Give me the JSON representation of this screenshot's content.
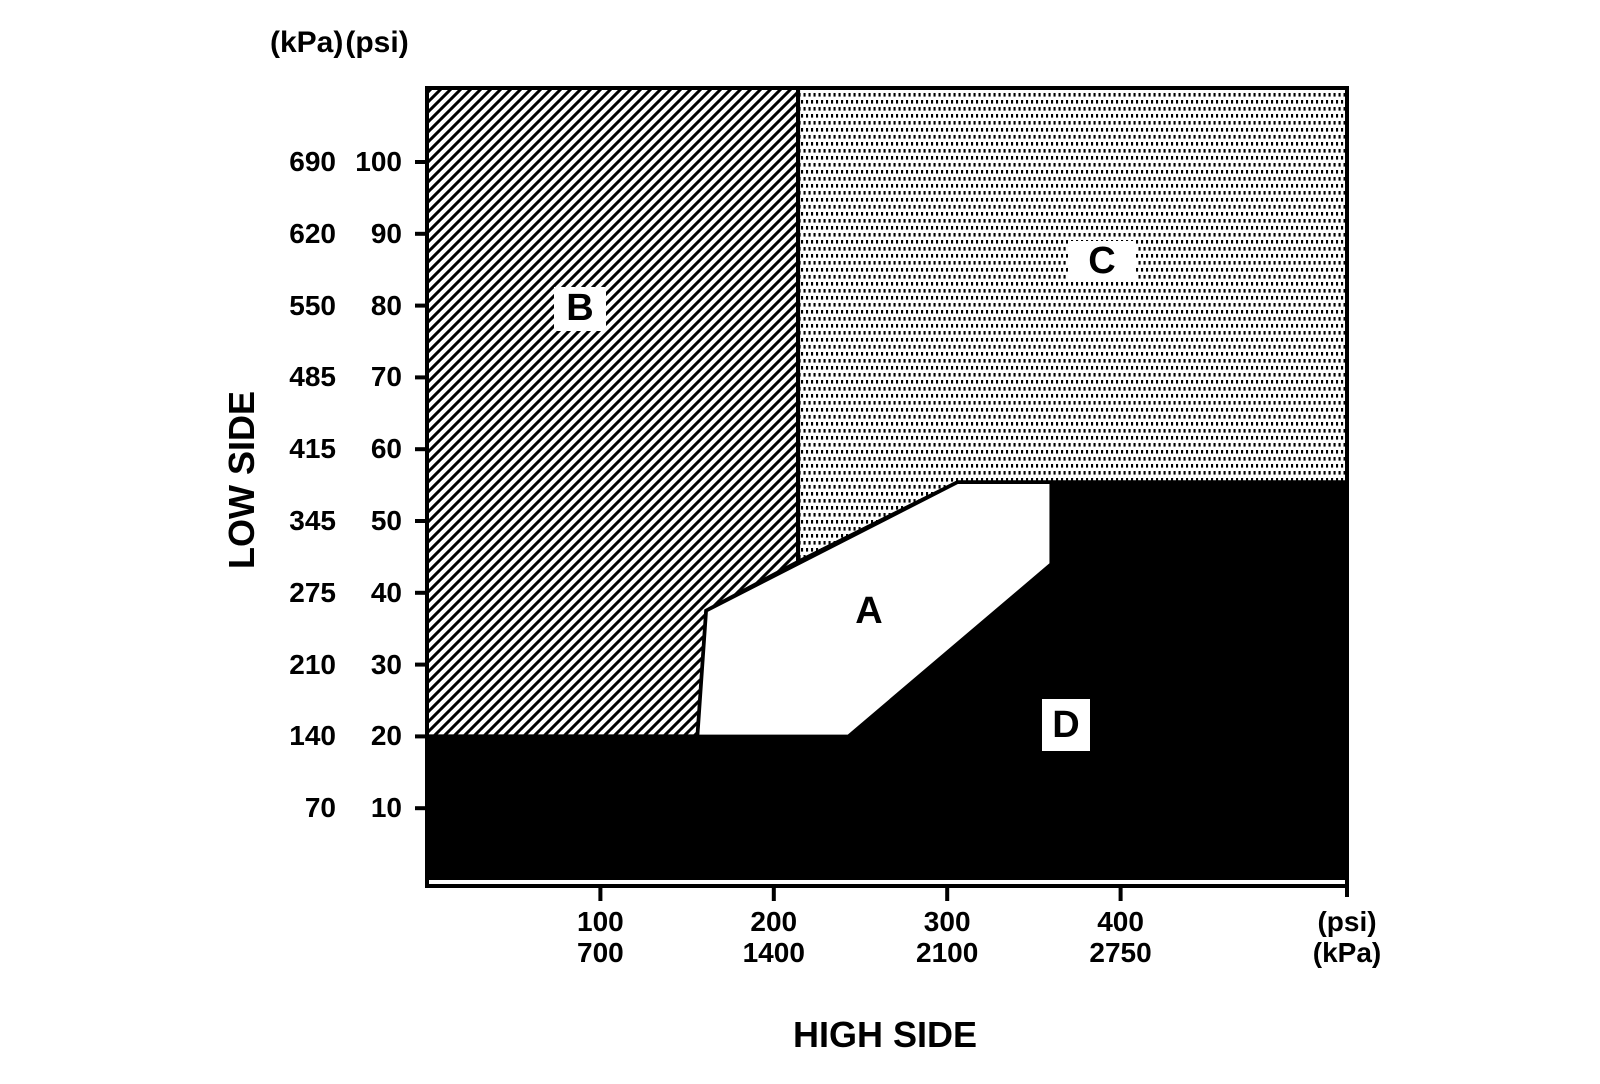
{
  "header": {
    "kpa": "(kPa)",
    "psi": "(psi)"
  },
  "y_axis_title": "LOW SIDE",
  "x_axis_title": "HIGH SIDE",
  "x_axis_unit_psi": "(psi)",
  "x_axis_unit_kpa": "(kPa)",
  "colors": {
    "ink": "#000000",
    "bg": "#ffffff"
  },
  "chart_data": {
    "type": "area",
    "subtype": "region-diagnostic-map",
    "title": "",
    "xlabel": "HIGH SIDE",
    "ylabel": "LOW SIDE",
    "x_units_rows": [
      "psi",
      "kPa"
    ],
    "y_units_cols": [
      "kPa",
      "psi"
    ],
    "xlim_psi": [
      0,
      530.6
    ],
    "ylim_psi": [
      0,
      110.3
    ],
    "grid": false,
    "legend": false,
    "x_ticks": [
      {
        "psi": 100,
        "kpa": 700
      },
      {
        "psi": 200,
        "kpa": 1400
      },
      {
        "psi": 300,
        "kpa": 2100
      },
      {
        "psi": 400,
        "kpa": 2750
      }
    ],
    "y_ticks": [
      {
        "kpa": 690,
        "psi": 100
      },
      {
        "kpa": 620,
        "psi": 90
      },
      {
        "kpa": 550,
        "psi": 80
      },
      {
        "kpa": 485,
        "psi": 70
      },
      {
        "kpa": 415,
        "psi": 60
      },
      {
        "kpa": 345,
        "psi": 50
      },
      {
        "kpa": 275,
        "psi": 40
      },
      {
        "kpa": 210,
        "psi": 30
      },
      {
        "kpa": 140,
        "psi": 20
      },
      {
        "kpa": 70,
        "psi": 10
      }
    ],
    "regions": [
      {
        "label": "D",
        "pattern": "solid-black",
        "vertices_psi": [
          [
            0,
            0
          ],
          [
            530.6,
            0
          ],
          [
            530.6,
            55.4
          ],
          [
            360,
            55.4
          ],
          [
            360,
            44
          ],
          [
            243,
            20
          ],
          [
            0,
            20
          ]
        ]
      },
      {
        "label": "B",
        "pattern": "diagonal-hatch",
        "vertices_psi": [
          [
            0,
            110.3
          ],
          [
            214,
            110.3
          ],
          [
            214,
            44.3
          ],
          [
            161,
            37.5
          ],
          [
            156,
            20
          ],
          [
            0,
            20
          ]
        ]
      },
      {
        "label": "C",
        "pattern": "dotted",
        "vertices_psi": [
          [
            214,
            110.3
          ],
          [
            530.6,
            110.3
          ],
          [
            530.6,
            55.4
          ],
          [
            306,
            55.4
          ],
          [
            214,
            44.3
          ]
        ]
      },
      {
        "label": "A",
        "pattern": "solid-white",
        "vertices_psi": [
          [
            161,
            37.5
          ],
          [
            306,
            55.4
          ],
          [
            360,
            55.4
          ],
          [
            360,
            44
          ],
          [
            243,
            20
          ],
          [
            156,
            20
          ]
        ]
      }
    ]
  }
}
